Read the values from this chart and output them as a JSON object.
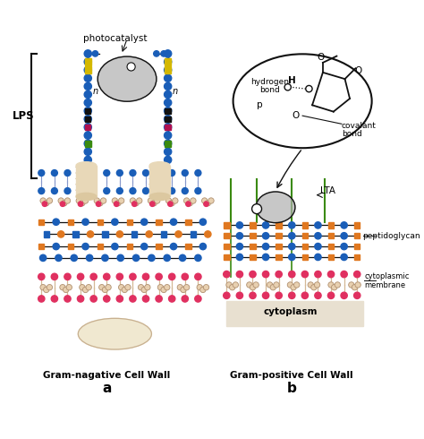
{
  "bg_color": "#ffffff",
  "blue": "#1a5eb8",
  "orange": "#e07820",
  "yellow": "#d4b800",
  "green": "#3a8a10",
  "dark": "#111111",
  "magenta": "#b01050",
  "pink": "#e03060",
  "tan": "#d4b896",
  "gray": "#b0b0b0",
  "black": "#111111",
  "lps_label": "LPS",
  "photocatalyst_label": "photocatalyst",
  "lta_label": "LTA",
  "peptidoglycan_label": "peptidoglycan",
  "cytoplasmic_label": "cytoplasmic\nmembrane",
  "cytoplasm_label": "cytoplasm",
  "subtitle_a": "Gram-nagative Cell Wall",
  "label_a": "a",
  "subtitle_b": "Gram-positive Cell Wall",
  "label_b": "b",
  "h_bond_label": "hydrogen",
  "h_bond_label2": "bond",
  "h_label": "H",
  "covalant_label": "covalant",
  "covalant_label2": "bond",
  "p_label": "p",
  "o_label": "O"
}
